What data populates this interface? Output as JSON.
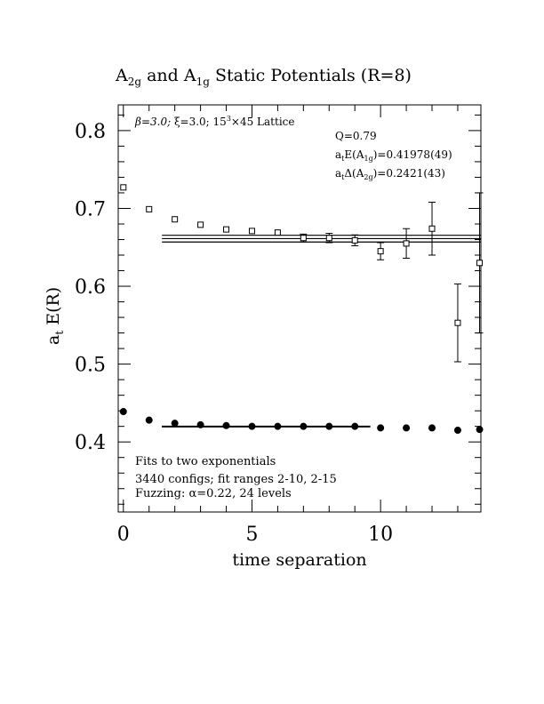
{
  "chart_data": {
    "type": "scatter",
    "title": {
      "prefix": "A",
      "sub1": "2g",
      "mid": " and A",
      "sub2": "1g",
      "suffix": " Static Potentials (R=8)"
    },
    "xlabel": "time separation",
    "ylabel": {
      "main": "a",
      "sub": "t",
      "rest": " E(R)"
    },
    "xlim": [
      -0.2,
      13.9
    ],
    "ylim": [
      0.31,
      0.833
    ],
    "x_ticks": [
      0,
      5,
      10
    ],
    "y_ticks": [
      0.4,
      0.5,
      0.6,
      0.7,
      0.8
    ],
    "x_tick_labels": [
      "0",
      "5",
      "10"
    ],
    "y_tick_labels": [
      "0.4",
      "0.5",
      "0.6",
      "0.7",
      "0.8"
    ],
    "annotations": {
      "lattice": {
        "beta": "β=3.0; ",
        "xi": "ξ=3.0; 15",
        "exp": "3",
        "rest": "×45 Lattice"
      },
      "q": "Q=0.79",
      "energy": {
        "pre": "a",
        "sub1": "t",
        "mid": "E(A",
        "sub2": "1g",
        "post": ")=0.41978(49)"
      },
      "gap": {
        "pre": "a",
        "sub1": "t",
        "mid": "Δ(A",
        "sub2": "2g",
        "post": ")=0.2421(43)"
      },
      "fit_method": "Fits to two exponentials",
      "configs": "3440 configs; fit ranges 2-10, 2-15",
      "fuzzing": "Fuzzing: α=0.22, 24 levels"
    },
    "series": [
      {
        "marker": "open-square",
        "points": [
          {
            "x": 0,
            "y": 0.727,
            "err": 0.002
          },
          {
            "x": 1,
            "y": 0.699,
            "err": 0.002
          },
          {
            "x": 2,
            "y": 0.686,
            "err": 0.002
          },
          {
            "x": 3,
            "y": 0.679,
            "err": 0.002
          },
          {
            "x": 4,
            "y": 0.673,
            "err": 0.002
          },
          {
            "x": 5,
            "y": 0.671,
            "err": 0.003
          },
          {
            "x": 6,
            "y": 0.669,
            "err": 0.004
          },
          {
            "x": 7,
            "y": 0.662,
            "err": 0.005
          },
          {
            "x": 8,
            "y": 0.662,
            "err": 0.006
          },
          {
            "x": 9,
            "y": 0.659,
            "err": 0.007
          },
          {
            "x": 10,
            "y": 0.645,
            "err": 0.011
          },
          {
            "x": 11,
            "y": 0.655,
            "err": 0.019
          },
          {
            "x": 12,
            "y": 0.674,
            "err": 0.034
          },
          {
            "x": 13,
            "y": 0.553,
            "err": 0.05
          },
          {
            "x": 13.85,
            "y": 0.63,
            "err": 0.09
          }
        ],
        "fit": {
          "x_start": 1.5,
          "x_end": 13.9,
          "y": 0.6612,
          "band": 0.0043
        }
      },
      {
        "marker": "filled-circle",
        "points": [
          {
            "x": 0,
            "y": 0.439
          },
          {
            "x": 1,
            "y": 0.428
          },
          {
            "x": 2,
            "y": 0.424
          },
          {
            "x": 3,
            "y": 0.422
          },
          {
            "x": 4,
            "y": 0.421
          },
          {
            "x": 5,
            "y": 0.42
          },
          {
            "x": 6,
            "y": 0.42
          },
          {
            "x": 7,
            "y": 0.42
          },
          {
            "x": 8,
            "y": 0.42
          },
          {
            "x": 9,
            "y": 0.42
          },
          {
            "x": 10,
            "y": 0.418
          },
          {
            "x": 11,
            "y": 0.418
          },
          {
            "x": 12,
            "y": 0.418
          },
          {
            "x": 13,
            "y": 0.415
          },
          {
            "x": 13.85,
            "y": 0.416
          }
        ],
        "fit": {
          "x_start": 1.5,
          "x_end": 9.6,
          "y": 0.41978,
          "band": 0.0005
        }
      }
    ]
  }
}
